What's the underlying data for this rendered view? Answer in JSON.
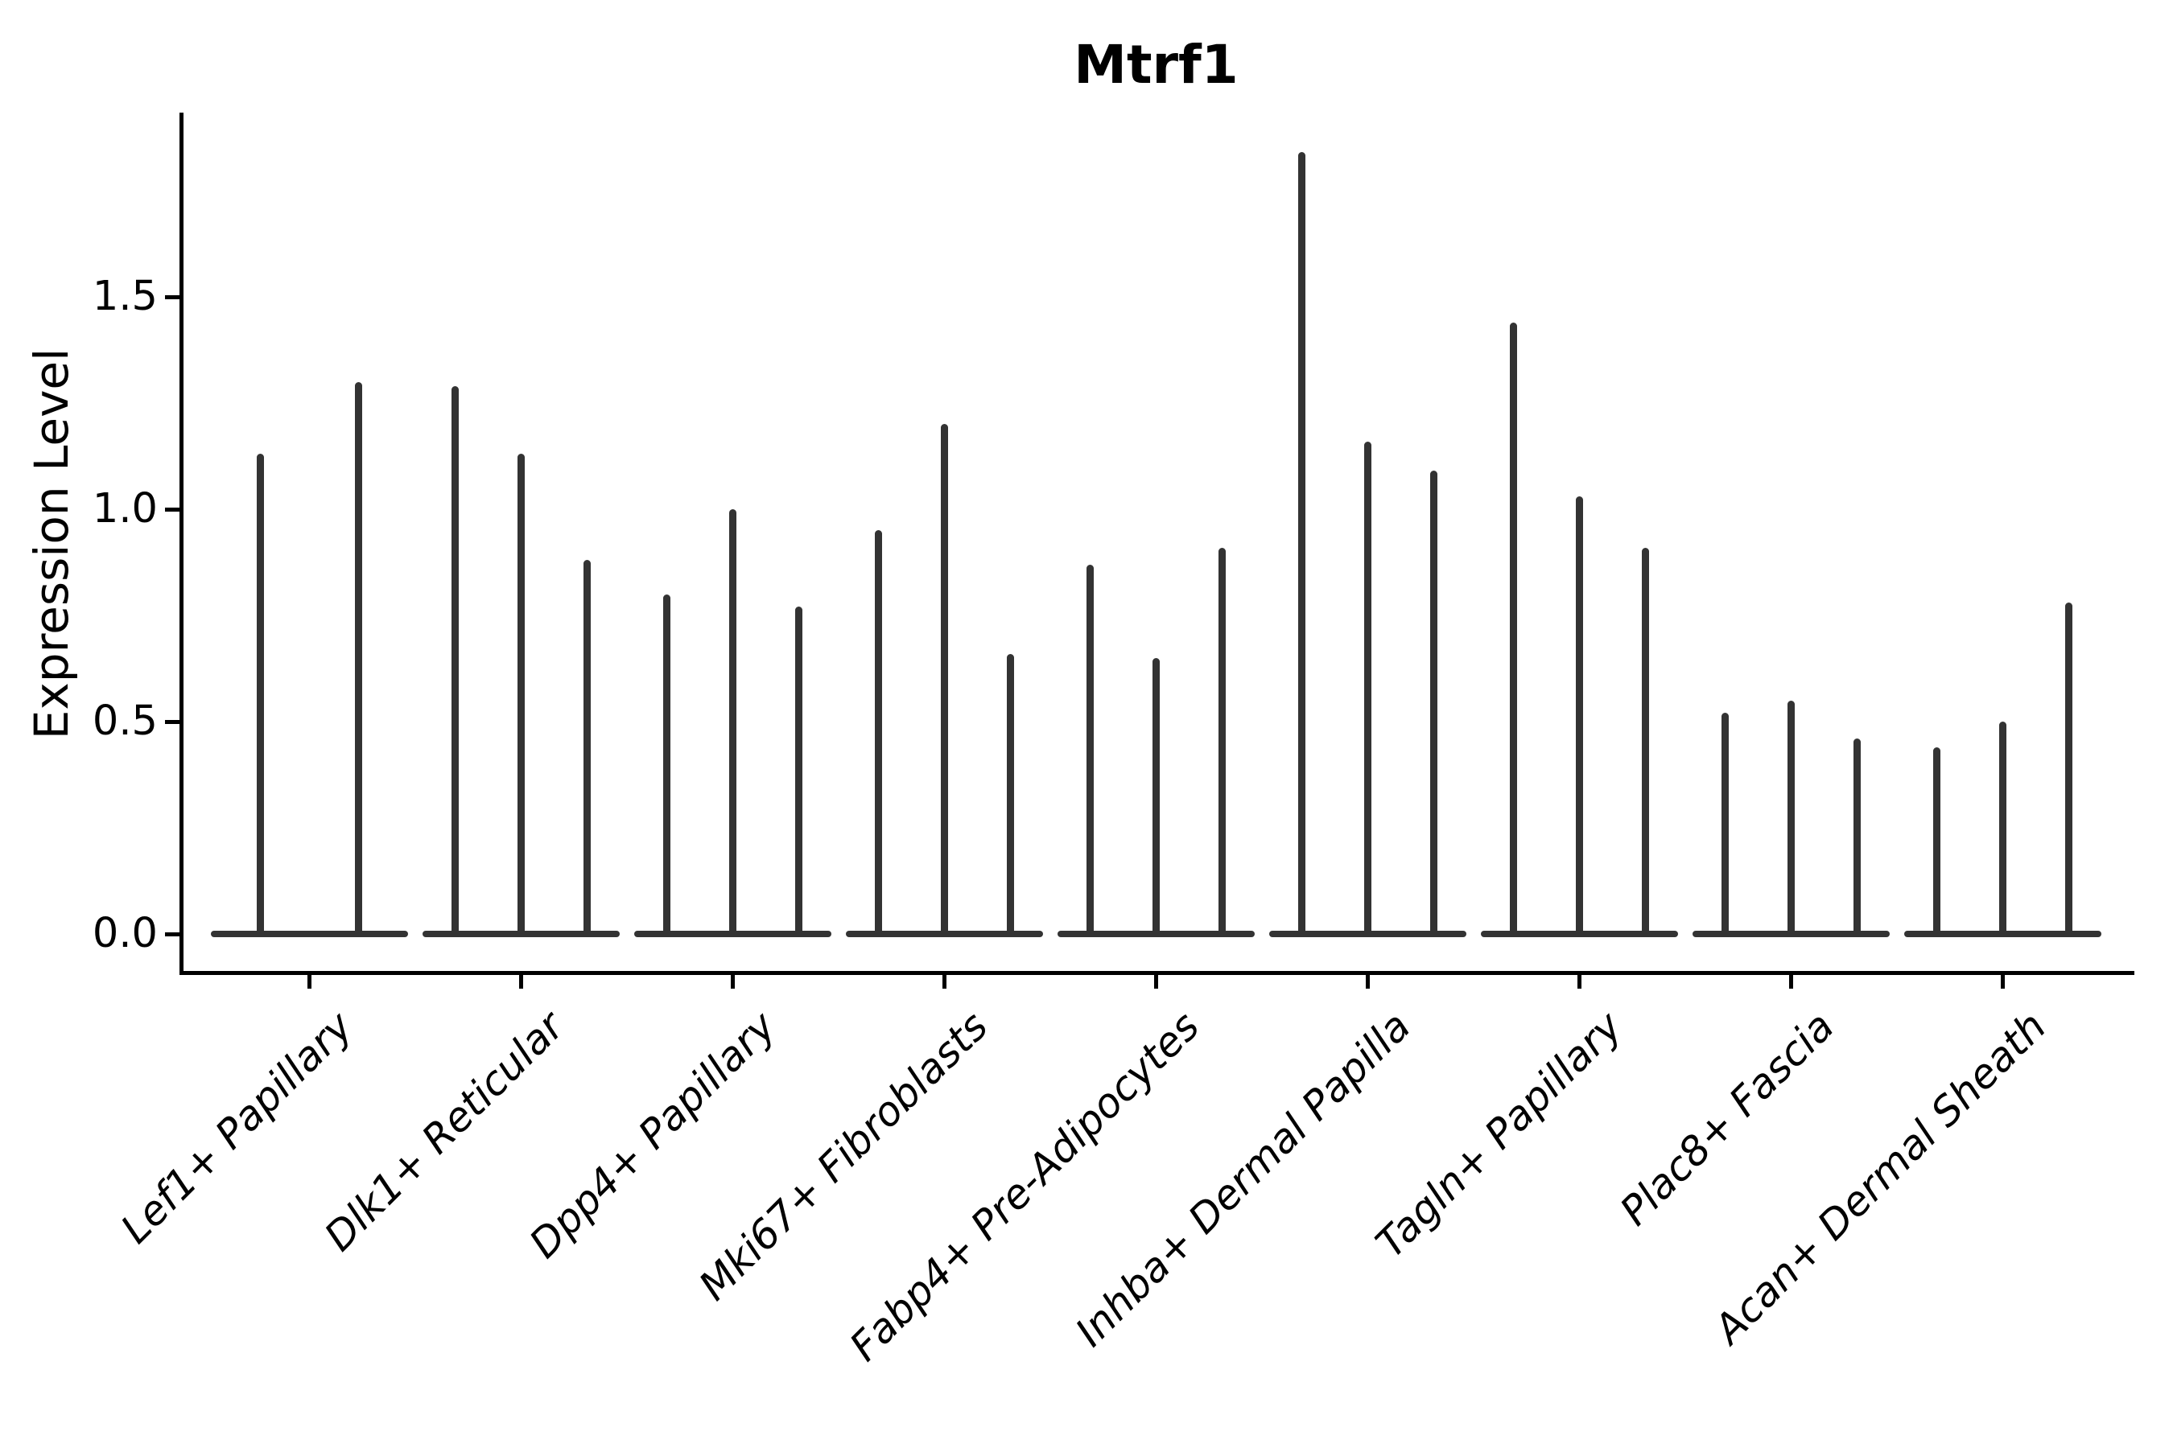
{
  "title": "Mtrf1",
  "y_axis": {
    "label": "Expression Level",
    "tick_labels": [
      "0.0",
      "0.5",
      "1.0",
      "1.5"
    ]
  },
  "colors": {
    "violin": "#333333",
    "axis": "#000000",
    "text": "#000000",
    "background": "#ffffff"
  },
  "chart_data": {
    "type": "violin",
    "title": "Mtrf1",
    "xlabel": "",
    "ylabel": "Expression Level",
    "ylim": [
      -0.09,
      1.93
    ],
    "yticks": [
      0,
      0.5,
      1.0,
      1.5
    ],
    "ytick_labels": [
      "0.0",
      "0.5",
      "1.0",
      "1.5"
    ],
    "grid": false,
    "legend": "none",
    "orientation": "vertical",
    "note": "Narrow spike-like violins: bulk of cells at expression 0 (flat wide base), thin tail up to the max expression value per violin; group 1 has 2 violins, all others have 3",
    "categories": [
      "Lef1+ Papillary",
      "Dlk1+ Reticular",
      "Dpp4+ Papillary",
      "Mki67+ Fibroblasts",
      "Fabp4+ Pre-Adipocytes",
      "Inhba+ Dermal Papilla",
      "Tagln+ Papillary",
      "Plac8+ Fascia",
      "Acan+ Dermal Sheath"
    ],
    "series": [
      {
        "category": "Lef1+ Papillary",
        "violin_max_values": [
          1.13,
          1.3
        ]
      },
      {
        "category": "Dlk1+ Reticular",
        "violin_max_values": [
          1.29,
          1.13,
          0.88
        ]
      },
      {
        "category": "Dpp4+ Papillary",
        "violin_max_values": [
          0.8,
          1.0,
          0.77
        ]
      },
      {
        "category": "Mki67+ Fibroblasts",
        "violin_max_values": [
          0.95,
          1.2,
          0.66
        ]
      },
      {
        "category": "Fabp4+ Pre-Adipocytes",
        "violin_max_values": [
          0.87,
          0.65,
          0.91
        ]
      },
      {
        "category": "Inhba+ Dermal Papilla",
        "violin_max_values": [
          1.84,
          1.16,
          1.09
        ]
      },
      {
        "category": "Tagln+ Papillary",
        "violin_max_values": [
          1.44,
          1.03,
          0.91
        ]
      },
      {
        "category": "Plac8+ Fascia",
        "violin_max_values": [
          0.52,
          0.55,
          0.46
        ]
      },
      {
        "category": "Acan+ Dermal Sheath",
        "violin_max_values": [
          0.44,
          0.5,
          0.78
        ]
      }
    ]
  }
}
